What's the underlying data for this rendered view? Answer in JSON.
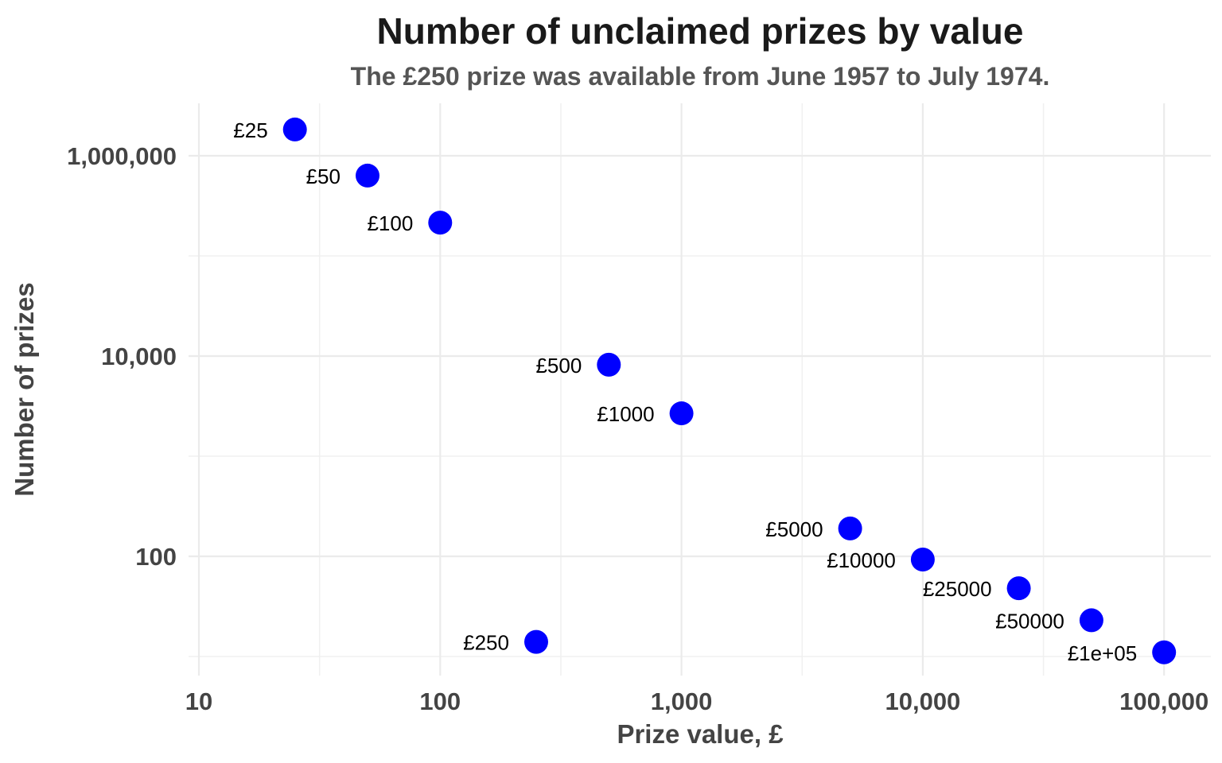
{
  "chart_data": {
    "type": "scatter",
    "title": "Number of unclaimed prizes by value",
    "subtitle": "The £250 prize was available from June 1957 to July 1974.",
    "xlabel": "Prize value, £",
    "ylabel": "Number of prizes",
    "xscale": "log10",
    "yscale": "log10",
    "xlim": [
      9,
      156000
    ],
    "ylim": [
      6.5,
      3300000
    ],
    "xticks": [
      10,
      100,
      1000,
      10000,
      100000
    ],
    "xtick_labels": [
      "10",
      "100",
      "1,000",
      "10,000",
      "100,000"
    ],
    "yticks": [
      100,
      10000,
      1000000
    ],
    "ytick_labels": [
      "100",
      "10,000",
      "1,000,000"
    ],
    "grid": true,
    "point_color": "#0000ff",
    "points": [
      {
        "label": "£25",
        "x": 25,
        "y": 1830000
      },
      {
        "label": "£50",
        "x": 50,
        "y": 634000
      },
      {
        "label": "£100",
        "x": 100,
        "y": 215000
      },
      {
        "label": "£250",
        "x": 250,
        "y": 14
      },
      {
        "label": "£500",
        "x": 500,
        "y": 8200
      },
      {
        "label": "£1000",
        "x": 1000,
        "y": 2680
      },
      {
        "label": "£5000",
        "x": 5000,
        "y": 190
      },
      {
        "label": "£10000",
        "x": 10000,
        "y": 93
      },
      {
        "label": "£25000",
        "x": 25000,
        "y": 48
      },
      {
        "label": "£50000",
        "x": 50000,
        "y": 23
      },
      {
        "label": "£1e+05",
        "x": 100000,
        "y": 11
      }
    ]
  }
}
